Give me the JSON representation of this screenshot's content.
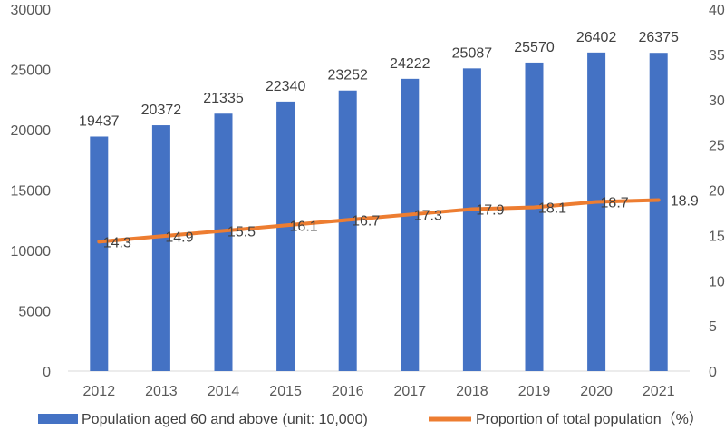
{
  "chart_data": {
    "type": "bar",
    "categories": [
      "2012",
      "2013",
      "2014",
      "2015",
      "2016",
      "2017",
      "2018",
      "2019",
      "2020",
      "2021"
    ],
    "series": [
      {
        "name": "Population aged 60 and above (unit: 10,000)",
        "type": "bar",
        "axis": "left",
        "color": "#4472C4",
        "values": [
          19437,
          20372,
          21335,
          22340,
          23252,
          24222,
          25087,
          25570,
          26402,
          26375
        ]
      },
      {
        "name": "Proportion of total population（%）",
        "type": "line",
        "axis": "right",
        "color": "#ED7D31",
        "values": [
          14.3,
          14.9,
          15.5,
          16.1,
          16.7,
          17.3,
          17.9,
          18.1,
          18.7,
          18.9
        ]
      }
    ],
    "y_left": {
      "range": [
        0,
        30000
      ],
      "ticks": [
        0,
        5000,
        10000,
        15000,
        20000,
        25000,
        30000
      ]
    },
    "y_right": {
      "range": [
        0,
        40
      ],
      "ticks": [
        0,
        5,
        10,
        15,
        20,
        25,
        30,
        35,
        40
      ]
    },
    "grid": false,
    "legend_position": "bottom",
    "data_labels": true
  }
}
